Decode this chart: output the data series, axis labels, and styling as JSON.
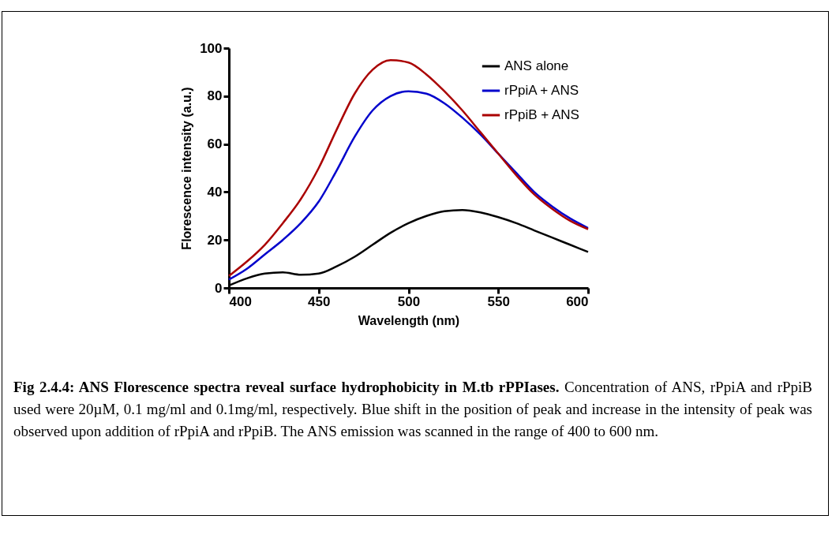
{
  "chart_data": {
    "type": "line",
    "title": "Fig 2.4.4: ANS Florescence spectra reveal surface hydrophobicity in M.tb rPPIases.",
    "annotations": [
      "Concentration of ANS, rPpiA and rPpiB used were 20µM, 0.1 mg/ml and 0.1mg/ml, respectively. Blue shift in the position of peak and increase in the intensity of peak was observed upon addition of rPpiA and rPpiB. The ANS emission was scanned in the range of 400 to 600 nm."
    ],
    "xlabel": "Wavelength (nm)",
    "ylabel": "Florescence intensity (a.u.)",
    "x": [
      400,
      410,
      420,
      430,
      440,
      450,
      460,
      470,
      480,
      490,
      500,
      510,
      520,
      530,
      540,
      550,
      560,
      570,
      580,
      590,
      600
    ],
    "xlim": [
      400,
      600
    ],
    "xticks": [
      400,
      450,
      500,
      550,
      600
    ],
    "ylim": [
      0,
      100
    ],
    "yticks": [
      0,
      20,
      40,
      60,
      80,
      100
    ],
    "grid": false,
    "legend": "top right",
    "marker": "none",
    "line_style": "solid",
    "series": [
      {
        "name": "ANS alone",
        "color": "#000000",
        "values": [
          1,
          4,
          6,
          6.5,
          5.5,
          6,
          9,
          13,
          18,
          23,
          27,
          30,
          32,
          32.5,
          31.5,
          29.5,
          27,
          24,
          21,
          18,
          15
        ]
      },
      {
        "name": "rPpiA + ANS",
        "color": "#0000cc",
        "values": [
          3.5,
          8,
          14,
          20,
          27,
          36,
          49,
          63,
          74,
          80,
          82,
          81,
          77,
          71,
          64,
          56,
          48,
          40,
          34,
          29,
          25
        ]
      },
      {
        "name": "rPpiB + ANS",
        "color": "#aa0000",
        "values": [
          5,
          11,
          18,
          27,
          37,
          50,
          66,
          81,
          91,
          95,
          94,
          89,
          82,
          74,
          65,
          56,
          47,
          39,
          33,
          28,
          24.5
        ]
      }
    ]
  }
}
